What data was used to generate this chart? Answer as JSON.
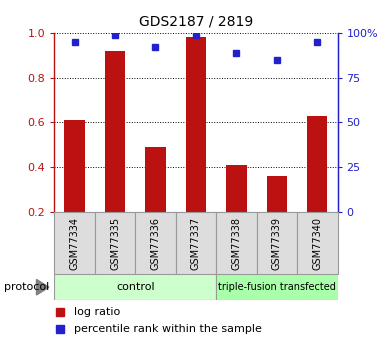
{
  "title": "GDS2187 / 2819",
  "samples": [
    "GSM77334",
    "GSM77335",
    "GSM77336",
    "GSM77337",
    "GSM77338",
    "GSM77339",
    "GSM77340"
  ],
  "log_ratio": [
    0.61,
    0.92,
    0.49,
    0.98,
    0.41,
    0.36,
    0.63
  ],
  "percentile_rank": [
    95,
    99,
    92,
    99,
    89,
    85,
    95
  ],
  "bar_color": "#bb1111",
  "dot_color": "#2222cc",
  "ylim_left": [
    0.2,
    1.0
  ],
  "ylim_right": [
    0,
    100
  ],
  "yticks_left": [
    0.2,
    0.4,
    0.6,
    0.8,
    1.0
  ],
  "yticks_right": [
    0,
    25,
    50,
    75,
    100
  ],
  "control_count": 4,
  "transfected_count": 3,
  "control_label": "control",
  "transfected_label": "triple-fusion transfected",
  "control_color": "#ccffcc",
  "transfected_color": "#aaffaa",
  "protocol_label": "protocol",
  "legend_log_label": "log ratio",
  "legend_pct_label": "percentile rank within the sample",
  "bg_color": "#dddddd",
  "spine_color": "#999999",
  "bar_bottom": 0.2
}
